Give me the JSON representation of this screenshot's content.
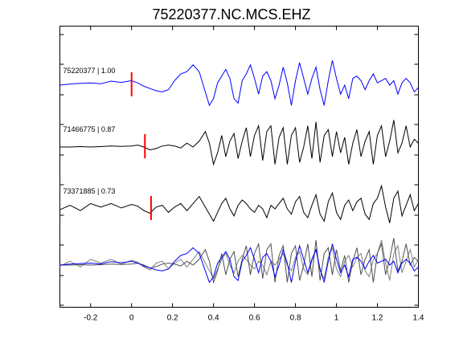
{
  "chart_data": {
    "type": "line",
    "title": "75220377.NC.MCS.EHZ",
    "xlabel": "",
    "ylabel": "",
    "xlim": [
      -0.35,
      1.4
    ],
    "xticks": [
      -0.2,
      0,
      0.2,
      0.4,
      0.6,
      0.8,
      1,
      1.2,
      1.4
    ],
    "grid": false,
    "colors": {
      "reference": "#0000ff",
      "match": "#000000",
      "overlay_gray": "#808080",
      "pick": "#ff0000"
    },
    "traces": [
      {
        "label": "75220377 | 1.00",
        "color": "#0000ff",
        "pick_time": 0.0,
        "x": [
          -0.35,
          -0.3,
          -0.25,
          -0.2,
          -0.15,
          -0.1,
          -0.05,
          0.0,
          0.03,
          0.06,
          0.09,
          0.12,
          0.15,
          0.18,
          0.21,
          0.24,
          0.27,
          0.3,
          0.33,
          0.36,
          0.38,
          0.4,
          0.42,
          0.44,
          0.46,
          0.48,
          0.5,
          0.52,
          0.54,
          0.56,
          0.58,
          0.6,
          0.62,
          0.64,
          0.66,
          0.68,
          0.7,
          0.72,
          0.74,
          0.76,
          0.78,
          0.8,
          0.82,
          0.84,
          0.86,
          0.88,
          0.9,
          0.92,
          0.94,
          0.96,
          0.98,
          1.0,
          1.02,
          1.04,
          1.06,
          1.08,
          1.1,
          1.12,
          1.14,
          1.16,
          1.18,
          1.2,
          1.22,
          1.24,
          1.26,
          1.28,
          1.3,
          1.32,
          1.34,
          1.36,
          1.38,
          1.4
        ],
        "y": [
          0.0,
          0.05,
          0.08,
          0.1,
          0.06,
          0.18,
          0.12,
          0.2,
          0.1,
          -0.05,
          -0.15,
          -0.25,
          -0.3,
          -0.2,
          0.2,
          0.5,
          0.6,
          0.9,
          0.6,
          -0.3,
          -0.9,
          -0.6,
          0.1,
          0.4,
          0.7,
          0.3,
          -0.6,
          -0.8,
          0.2,
          0.5,
          0.9,
          0.3,
          -0.4,
          0.4,
          0.6,
          0.2,
          -0.6,
          0.0,
          0.8,
          0.1,
          -0.9,
          0.2,
          1.0,
          0.3,
          -0.4,
          0.3,
          0.8,
          -0.2,
          -0.9,
          0.2,
          1.1,
          0.3,
          -0.4,
          0.0,
          -0.6,
          0.3,
          0.4,
          0.2,
          -0.2,
          0.2,
          0.5,
          0.1,
          0.2,
          0.3,
          0.0,
          0.2,
          -0.4,
          0.1,
          0.3,
          0.1,
          -0.3,
          -0.1
        ]
      },
      {
        "label": "71466775 | 0.87",
        "color": "#000000",
        "pick_time": 0.065,
        "x": [
          -0.35,
          -0.3,
          -0.25,
          -0.2,
          -0.15,
          -0.1,
          -0.05,
          0.0,
          0.03,
          0.06,
          0.09,
          0.12,
          0.15,
          0.18,
          0.21,
          0.24,
          0.27,
          0.3,
          0.33,
          0.36,
          0.38,
          0.4,
          0.42,
          0.44,
          0.46,
          0.48,
          0.5,
          0.52,
          0.54,
          0.56,
          0.58,
          0.6,
          0.62,
          0.64,
          0.66,
          0.68,
          0.7,
          0.72,
          0.74,
          0.76,
          0.78,
          0.8,
          0.82,
          0.84,
          0.86,
          0.88,
          0.9,
          0.92,
          0.94,
          0.96,
          0.98,
          1.0,
          1.02,
          1.04,
          1.06,
          1.08,
          1.1,
          1.12,
          1.14,
          1.16,
          1.18,
          1.2,
          1.22,
          1.24,
          1.26,
          1.28,
          1.3,
          1.32,
          1.34,
          1.36,
          1.38,
          1.4
        ],
        "y": [
          0.0,
          0.0,
          0.02,
          0.0,
          0.02,
          0.05,
          0.03,
          0.05,
          0.1,
          0.0,
          -0.15,
          -0.08,
          0.05,
          0.1,
          0.05,
          -0.05,
          0.2,
          0.0,
          0.3,
          0.8,
          0.2,
          -0.9,
          -0.3,
          0.6,
          -0.5,
          0.3,
          0.7,
          -0.6,
          0.3,
          1.0,
          -0.5,
          0.6,
          1.1,
          -0.7,
          0.8,
          1.1,
          -0.9,
          0.5,
          1.0,
          -0.9,
          0.6,
          1.0,
          -0.8,
          0.0,
          1.1,
          -0.6,
          1.3,
          -0.8,
          0.6,
          0.9,
          -0.5,
          0.8,
          -0.3,
          0.5,
          -0.9,
          0.2,
          0.9,
          -0.5,
          0.3,
          0.8,
          -0.9,
          0.6,
          1.1,
          -0.5,
          0.3,
          1.4,
          -0.3,
          0.2,
          1.1,
          0.0,
          0.4,
          0.2
        ]
      },
      {
        "label": "73371885 | 0.73",
        "color": "#000000",
        "pick_time": 0.095,
        "x": [
          -0.35,
          -0.3,
          -0.25,
          -0.2,
          -0.15,
          -0.1,
          -0.05,
          0.0,
          0.03,
          0.06,
          0.09,
          0.12,
          0.15,
          0.18,
          0.21,
          0.24,
          0.27,
          0.3,
          0.33,
          0.36,
          0.38,
          0.4,
          0.42,
          0.44,
          0.46,
          0.48,
          0.5,
          0.52,
          0.54,
          0.56,
          0.58,
          0.6,
          0.62,
          0.64,
          0.66,
          0.68,
          0.7,
          0.72,
          0.74,
          0.76,
          0.78,
          0.8,
          0.82,
          0.84,
          0.86,
          0.88,
          0.9,
          0.92,
          0.94,
          0.96,
          0.98,
          1.0,
          1.02,
          1.04,
          1.06,
          1.08,
          1.1,
          1.12,
          1.14,
          1.16,
          1.18,
          1.2,
          1.22,
          1.24,
          1.26,
          1.28,
          1.3,
          1.32,
          1.34,
          1.36,
          1.38,
          1.4
        ],
        "y": [
          -0.05,
          0.2,
          -0.1,
          0.3,
          0.1,
          0.3,
          0.05,
          0.25,
          0.15,
          -0.1,
          -0.25,
          0.1,
          0.2,
          -0.2,
          0.1,
          0.3,
          -0.1,
          0.3,
          0.7,
          0.1,
          -0.3,
          -0.7,
          -0.2,
          0.3,
          0.6,
          0.0,
          -0.4,
          0.2,
          0.5,
          0.3,
          0.0,
          -0.2,
          0.2,
          0.0,
          -0.5,
          0.2,
          0.0,
          0.3,
          0.6,
          0.0,
          -0.3,
          0.4,
          0.7,
          -0.2,
          -0.5,
          0.2,
          0.8,
          -0.3,
          -0.7,
          0.4,
          0.9,
          -0.2,
          -0.6,
          0.2,
          0.5,
          -0.1,
          0.4,
          0.6,
          -0.3,
          -0.6,
          0.3,
          0.6,
          1.3,
          0.1,
          -0.8,
          0.6,
          1.0,
          -0.4,
          0.2,
          0.8,
          -0.1,
          0.3
        ]
      }
    ],
    "overlay": {
      "series": [
        {
          "color": "#808080",
          "source_trace": 2
        },
        {
          "color": "#505050",
          "source_trace": 1
        },
        {
          "color": "#0000ff",
          "source_trace": 0
        }
      ]
    }
  }
}
